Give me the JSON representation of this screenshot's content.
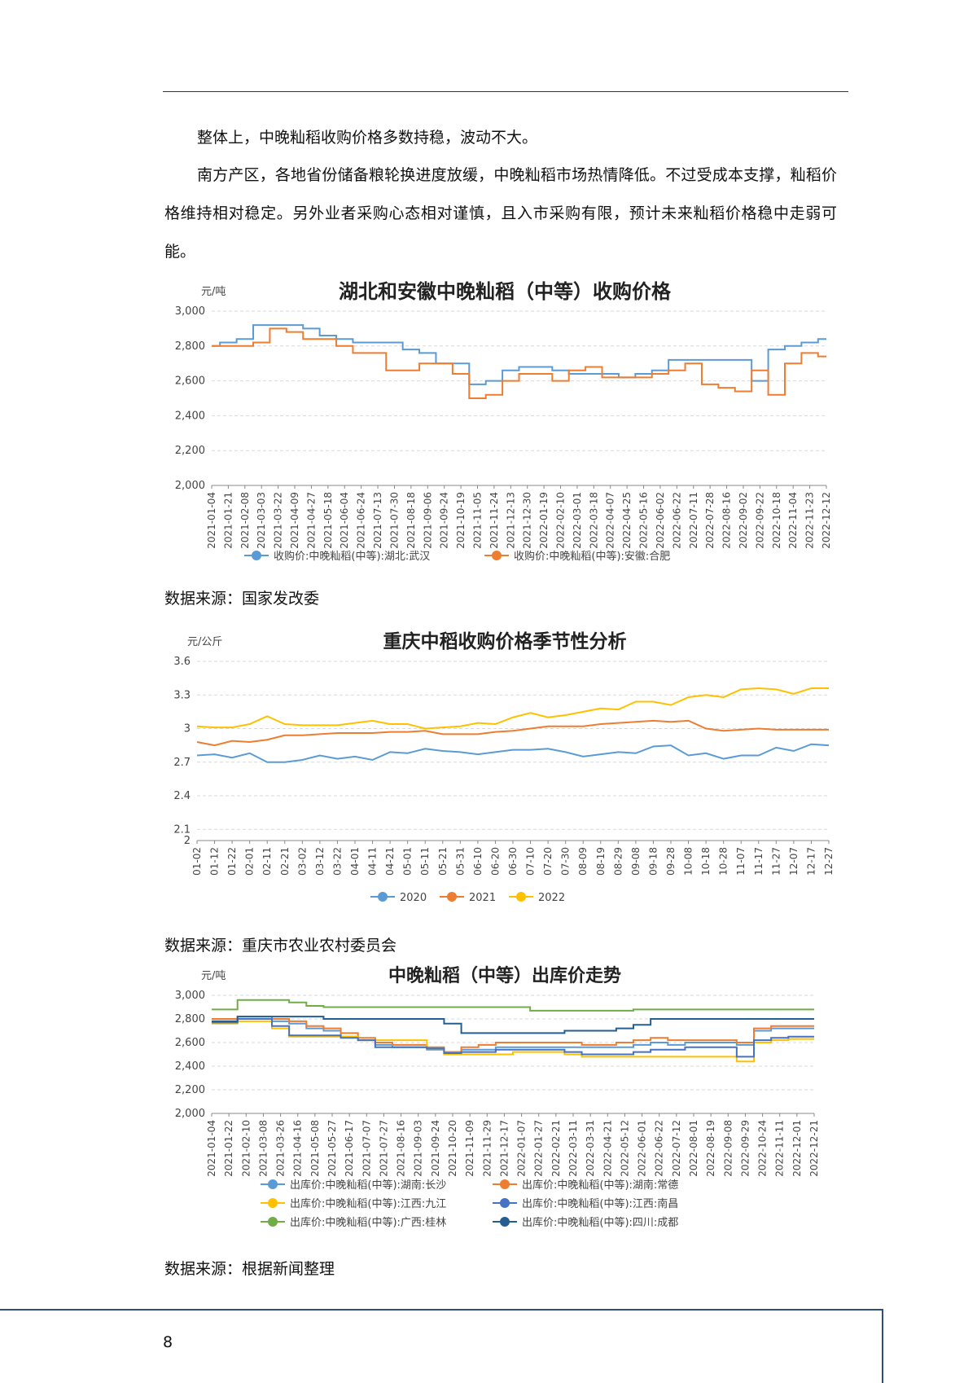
{
  "paragraphs": [
    "整体上，中晚籼稻收购价格多数持稳，波动不大。",
    "南方产区，各地省份储备粮轮换进度放缓，中晚籼稻市场热情降低。不过受成本支撑，籼稻价格维持相对稳定。另外业者采购心态相对谨慎，且入市采购有限，预计未来籼稻价格稳中走弱可能。"
  ],
  "page_number": "8",
  "colors": {
    "blue": "#5b9bd5",
    "orange": "#ed7d31",
    "yellow": "#ffc000",
    "navy": "#4472c4",
    "green": "#70ad47",
    "darknavy": "#255e91",
    "footer": "#2e4f7c"
  },
  "chart_data": [
    {
      "type": "line",
      "title": "湖北和安徽中晚籼稻（中等）收购价格",
      "ylabel": "元/吨",
      "ylim": [
        2000,
        3000
      ],
      "yticks": [
        "2,000",
        "2,200",
        "2,400",
        "2,600",
        "2,800",
        "3,000"
      ],
      "ytick_values": [
        2000,
        2200,
        2400,
        2600,
        2800,
        3000
      ],
      "categories": [
        "2021-01-04",
        "2021-01-21",
        "2021-02-08",
        "2021-03-03",
        "2021-03-22",
        "2021-04-09",
        "2021-04-27",
        "2021-05-18",
        "2021-06-04",
        "2021-06-24",
        "2021-07-13",
        "2021-07-30",
        "2021-08-18",
        "2021-09-06",
        "2021-09-24",
        "2021-10-19",
        "2021-11-05",
        "2021-11-24",
        "2021-12-13",
        "2021-12-30",
        "2022-01-19",
        "2022-02-10",
        "2022-03-01",
        "2022-03-18",
        "2022-04-07",
        "2022-04-25",
        "2022-05-16",
        "2022-06-02",
        "2022-06-22",
        "2022-07-11",
        "2022-07-28",
        "2022-08-16",
        "2022-09-02",
        "2022-09-22",
        "2022-10-18",
        "2022-11-04",
        "2022-11-23",
        "2022-12-12"
      ],
      "series": [
        {
          "name": "收购价:中晚籼稻(中等):湖北:武汉",
          "color": "#5b9bd5",
          "values": [
            2800,
            2820,
            2840,
            2920,
            2920,
            2920,
            2900,
            2860,
            2840,
            2820,
            2820,
            2820,
            2780,
            2760,
            2700,
            2700,
            2580,
            2600,
            2660,
            2680,
            2680,
            2660,
            2640,
            2640,
            2640,
            2620,
            2640,
            2660,
            2720,
            2720,
            2720,
            2720,
            2720,
            2600,
            2780,
            2800,
            2820,
            2840
          ]
        },
        {
          "name": "收购价:中晚籼稻(中等):安徽:合肥",
          "color": "#ed7d31",
          "values": [
            2800,
            2800,
            2800,
            2820,
            2900,
            2880,
            2840,
            2840,
            2800,
            2760,
            2760,
            2660,
            2660,
            2700,
            2700,
            2640,
            2500,
            2520,
            2600,
            2640,
            2640,
            2600,
            2660,
            2680,
            2620,
            2620,
            2620,
            2640,
            2660,
            2700,
            2580,
            2560,
            2540,
            2660,
            2520,
            2700,
            2760,
            2740
          ]
        }
      ]
    },
    {
      "type": "line",
      "title": "重庆中稻收购价格季节性分析",
      "ylabel": "元/公斤",
      "ylim": [
        2.0,
        3.6
      ],
      "yticks": [
        "2",
        "2.1",
        "2.4",
        "2.7",
        "3",
        "3.3",
        "3.6"
      ],
      "ytick_values": [
        2.0,
        2.1,
        2.4,
        2.7,
        3.0,
        3.3,
        3.6
      ],
      "categories": [
        "01-02",
        "01-12",
        "01-22",
        "02-01",
        "02-11",
        "02-21",
        "03-02",
        "03-12",
        "03-22",
        "04-01",
        "04-11",
        "04-21",
        "05-01",
        "05-11",
        "05-21",
        "05-31",
        "06-10",
        "06-20",
        "06-30",
        "07-10",
        "07-20",
        "07-30",
        "08-09",
        "08-19",
        "08-29",
        "09-08",
        "09-18",
        "09-28",
        "10-08",
        "10-18",
        "10-28",
        "11-07",
        "11-17",
        "11-27",
        "12-07",
        "12-17",
        "12-27"
      ],
      "series": [
        {
          "name": "2020",
          "color": "#5b9bd5",
          "values": [
            2.76,
            2.77,
            2.74,
            2.78,
            2.7,
            2.7,
            2.72,
            2.76,
            2.73,
            2.75,
            2.72,
            2.79,
            2.78,
            2.82,
            2.8,
            2.79,
            2.77,
            2.79,
            2.81,
            2.81,
            2.82,
            2.79,
            2.75,
            2.77,
            2.79,
            2.78,
            2.84,
            2.85,
            2.76,
            2.78,
            2.73,
            2.76,
            2.76,
            2.83,
            2.8,
            2.86,
            2.85
          ]
        },
        {
          "name": "2021",
          "color": "#ed7d31",
          "values": [
            2.88,
            2.85,
            2.89,
            2.88,
            2.9,
            2.94,
            2.94,
            2.95,
            2.96,
            2.96,
            2.96,
            2.97,
            2.97,
            2.98,
            2.95,
            2.95,
            2.95,
            2.97,
            2.98,
            3.0,
            3.02,
            3.02,
            3.02,
            3.04,
            3.05,
            3.06,
            3.07,
            3.06,
            3.07,
            3.0,
            2.98,
            2.99,
            3.0,
            2.99,
            2.99,
            2.99,
            2.99
          ]
        },
        {
          "name": "2022",
          "color": "#ffc000",
          "values": [
            3.02,
            3.01,
            3.01,
            3.04,
            3.11,
            3.04,
            3.03,
            3.03,
            3.03,
            3.05,
            3.07,
            3.04,
            3.04,
            3.0,
            3.01,
            3.02,
            3.05,
            3.04,
            3.1,
            3.14,
            3.1,
            3.12,
            3.15,
            3.18,
            3.17,
            3.24,
            3.24,
            3.21,
            3.28,
            3.3,
            3.28,
            3.35,
            3.36,
            3.35,
            3.31,
            3.36,
            3.36
          ]
        }
      ]
    },
    {
      "type": "line",
      "title": "中晚籼稻（中等）出库价走势",
      "ylabel": "元/吨",
      "ylim": [
        2000,
        3000
      ],
      "yticks": [
        "2,000",
        "2,200",
        "2,400",
        "2,600",
        "2,800",
        "3,000"
      ],
      "ytick_values": [
        2000,
        2200,
        2400,
        2600,
        2800,
        3000
      ],
      "categories": [
        "2021-01-04",
        "2021-01-22",
        "2021-02-10",
        "2021-03-08",
        "2021-03-26",
        "2021-04-16",
        "2021-05-08",
        "2021-05-27",
        "2021-06-17",
        "2021-07-07",
        "2021-07-27",
        "2021-08-16",
        "2021-09-03",
        "2021-09-24",
        "2021-10-20",
        "2021-11-09",
        "2021-11-29",
        "2021-12-17",
        "2022-01-07",
        "2022-01-27",
        "2022-02-21",
        "2022-03-11",
        "2022-03-31",
        "2022-04-21",
        "2022-05-12",
        "2022-06-01",
        "2022-06-22",
        "2022-07-12",
        "2022-08-01",
        "2022-08-19",
        "2022-09-08",
        "2022-09-29",
        "2022-10-24",
        "2022-11-11",
        "2022-12-01",
        "2022-12-21"
      ],
      "series": [
        {
          "name": "出库价:中晚籼稻(中等):湖南:长沙",
          "color": "#5b9bd5",
          "values": [
            2780,
            2780,
            2800,
            2800,
            2780,
            2760,
            2720,
            2700,
            2650,
            2620,
            2580,
            2560,
            2560,
            2540,
            2520,
            2540,
            2540,
            2560,
            2560,
            2560,
            2560,
            2560,
            2560,
            2560,
            2560,
            2580,
            2600,
            2580,
            2600,
            2600,
            2600,
            2580,
            2700,
            2720,
            2720,
            2720
          ]
        },
        {
          "name": "出库价:中晚籼稻(中等):湖南:常德",
          "color": "#ed7d31",
          "values": [
            2800,
            2800,
            2820,
            2820,
            2800,
            2780,
            2740,
            2720,
            2680,
            2640,
            2600,
            2580,
            2580,
            2560,
            2520,
            2560,
            2580,
            2600,
            2600,
            2600,
            2600,
            2600,
            2580,
            2580,
            2600,
            2620,
            2640,
            2620,
            2620,
            2620,
            2620,
            2600,
            2720,
            2740,
            2740,
            2740
          ]
        },
        {
          "name": "出库价:中晚籼稻(中等):江西:九江",
          "color": "#ffc000",
          "values": [
            2760,
            2760,
            2780,
            2780,
            2720,
            2650,
            2650,
            2650,
            2650,
            2620,
            2620,
            2620,
            2620,
            2550,
            2500,
            2500,
            2500,
            2500,
            2520,
            2520,
            2520,
            2500,
            2480,
            2480,
            2480,
            2480,
            2480,
            2480,
            2480,
            2480,
            2480,
            2440,
            2600,
            2620,
            2630,
            2630
          ]
        },
        {
          "name": "出库价:中晚籼稻(中等):江西:南昌",
          "color": "#4472c4",
          "values": [
            2770,
            2770,
            2800,
            2800,
            2740,
            2660,
            2660,
            2660,
            2640,
            2620,
            2560,
            2560,
            2560,
            2550,
            2510,
            2520,
            2520,
            2540,
            2540,
            2540,
            2540,
            2520,
            2500,
            2500,
            2500,
            2520,
            2540,
            2540,
            2560,
            2560,
            2560,
            2480,
            2620,
            2640,
            2650,
            2650
          ]
        },
        {
          "name": "出库价:中晚籼稻(中等):广西:桂林",
          "color": "#70ad47",
          "values": [
            2880,
            2880,
            2960,
            2960,
            2960,
            2940,
            2910,
            2900,
            2900,
            2900,
            2900,
            2900,
            2900,
            2900,
            2900,
            2900,
            2900,
            2900,
            2900,
            2870,
            2870,
            2870,
            2870,
            2870,
            2870,
            2880,
            2880,
            2880,
            2880,
            2880,
            2880,
            2880,
            2880,
            2880,
            2880,
            2880
          ]
        },
        {
          "name": "出库价:中晚籼稻(中等):四川:成都",
          "color": "#255e91",
          "values": [
            2780,
            2780,
            2820,
            2820,
            2820,
            2820,
            2820,
            2800,
            2800,
            2800,
            2800,
            2800,
            2800,
            2800,
            2760,
            2680,
            2680,
            2680,
            2680,
            2680,
            2680,
            2700,
            2700,
            2700,
            2720,
            2750,
            2800,
            2800,
            2800,
            2800,
            2800,
            2800,
            2800,
            2800,
            2800,
            2800
          ]
        }
      ]
    }
  ],
  "sources": [
    "数据来源：国家发改委",
    "数据来源：重庆市农业农村委员会",
    "数据来源：根据新闻整理"
  ]
}
